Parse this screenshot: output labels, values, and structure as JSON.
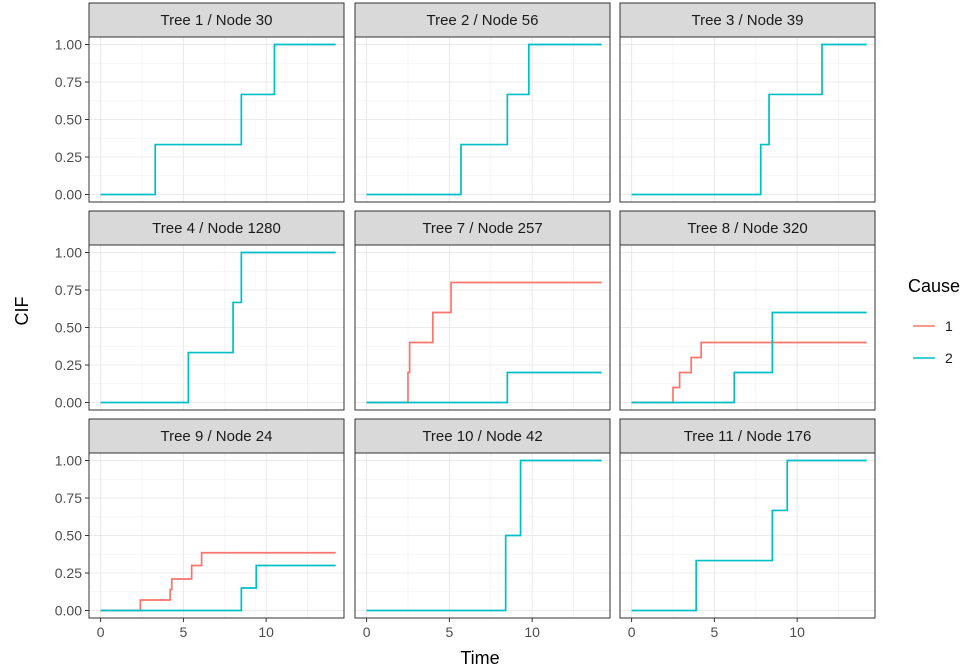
{
  "chart_data": {
    "type": "line",
    "step": true,
    "xlabel": "Time",
    "ylabel": "CIF",
    "xlim": [
      -0.7,
      14.7
    ],
    "ylim": [
      -0.05,
      1.05
    ],
    "x_ticks": [
      0,
      5,
      10
    ],
    "x_tick_labels": [
      "0",
      "5",
      "10"
    ],
    "y_ticks": [
      0,
      0.25,
      0.5,
      0.75,
      1
    ],
    "y_tick_labels": [
      "0.00",
      "0.25",
      "0.50",
      "0.75",
      "1.00"
    ],
    "grid": true,
    "legend": {
      "title": "Cause",
      "placement": "right",
      "entries": [
        {
          "label": "1",
          "color": "#F8766D"
        },
        {
          "label": "2",
          "color": "#00BFC4"
        }
      ]
    },
    "panels": [
      {
        "title": "Tree 1 / Node 30",
        "series": [
          {
            "cause": "2",
            "x": [
              0,
              3.3,
              8.5,
              10.5,
              14.2
            ],
            "y": [
              0,
              0.333,
              0.667,
              1.0,
              1.0
            ]
          }
        ]
      },
      {
        "title": "Tree 2 / Node 56",
        "series": [
          {
            "cause": "2",
            "x": [
              0,
              5.7,
              8.5,
              9.8,
              14.2
            ],
            "y": [
              0,
              0.333,
              0.667,
              1.0,
              1.0
            ]
          }
        ]
      },
      {
        "title": "Tree 3 / Node 39",
        "series": [
          {
            "cause": "2",
            "x": [
              0,
              7.8,
              8.3,
              11.5,
              14.2
            ],
            "y": [
              0,
              0.333,
              0.667,
              1.0,
              1.0
            ]
          }
        ]
      },
      {
        "title": "Tree 4 / Node 1280",
        "series": [
          {
            "cause": "2",
            "x": [
              0,
              5.3,
              8.0,
              8.5,
              14.2
            ],
            "y": [
              0,
              0.333,
              0.667,
              1.0,
              1.0
            ]
          }
        ]
      },
      {
        "title": "Tree 7 / Node 257",
        "series": [
          {
            "cause": "1",
            "x": [
              0,
              2.5,
              2.6,
              4.0,
              5.1,
              14.2
            ],
            "y": [
              0,
              0.2,
              0.4,
              0.6,
              0.8,
              0.8
            ]
          },
          {
            "cause": "2",
            "x": [
              0,
              8.5,
              14.2
            ],
            "y": [
              0,
              0.2,
              0.2
            ]
          }
        ]
      },
      {
        "title": "Tree 8 / Node 320",
        "series": [
          {
            "cause": "1",
            "x": [
              0,
              2.5,
              2.9,
              3.6,
              4.2,
              4.6,
              14.2
            ],
            "y": [
              0,
              0.1,
              0.2,
              0.3,
              0.4,
              0.4,
              0.4
            ]
          },
          {
            "cause": "2",
            "x": [
              0,
              6.2,
              8.5,
              14.2
            ],
            "y": [
              0,
              0.2,
              0.6,
              0.6
            ]
          }
        ]
      },
      {
        "title": "Tree 9 / Node 24",
        "series": [
          {
            "cause": "1",
            "x": [
              0,
              2.4,
              4.2,
              4.3,
              5.5,
              6.1,
              14.2
            ],
            "y": [
              0,
              0.07,
              0.14,
              0.21,
              0.3,
              0.385,
              0.385
            ]
          },
          {
            "cause": "2",
            "x": [
              0,
              8.5,
              9.4,
              14.2
            ],
            "y": [
              0,
              0.15,
              0.3,
              0.3
            ]
          }
        ]
      },
      {
        "title": "Tree 10 / Node 42",
        "series": [
          {
            "cause": "2",
            "x": [
              0,
              8.4,
              9.3,
              14.2
            ],
            "y": [
              0,
              0.5,
              1.0,
              1.0
            ]
          }
        ]
      },
      {
        "title": "Tree 11 / Node 176",
        "series": [
          {
            "cause": "2",
            "x": [
              0,
              3.9,
              8.5,
              9.4,
              14.2
            ],
            "y": [
              0,
              0.333,
              0.667,
              1.0,
              1.0
            ]
          }
        ]
      }
    ]
  }
}
